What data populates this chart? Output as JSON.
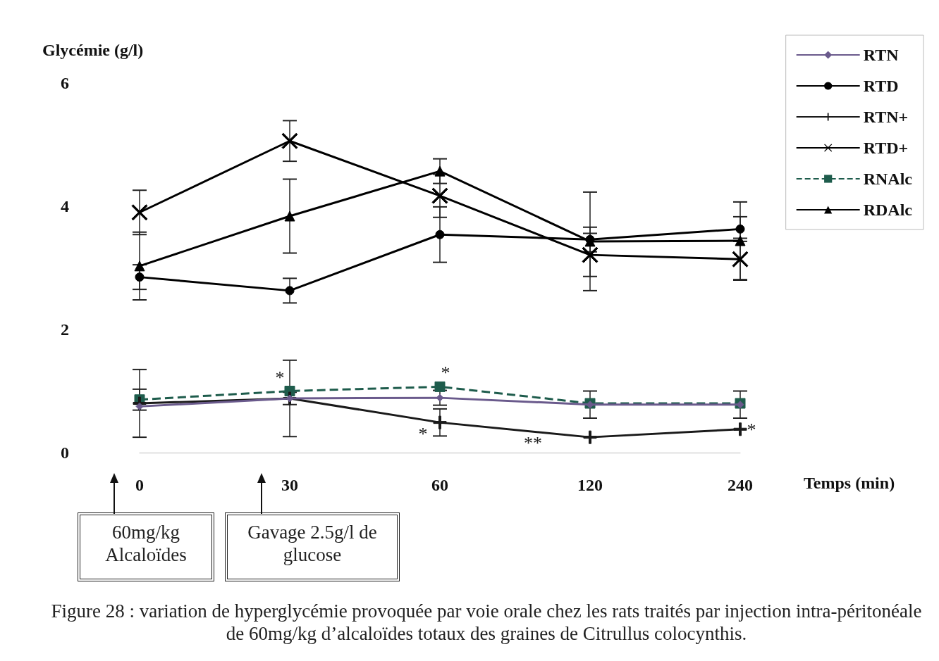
{
  "chart_data": {
    "type": "line",
    "ylabel": "Glycémie (g/l)",
    "xlabel": "Temps (min)",
    "categories": [
      "0",
      "30",
      "60",
      "120",
      "240"
    ],
    "ylim": [
      0,
      6
    ],
    "yticks": [
      0,
      2,
      4,
      6
    ],
    "grid": false,
    "legend": "top right",
    "series": [
      {
        "name": "RTN",
        "color": "#6a5a8c",
        "marker": "diamond",
        "line_style": "solid",
        "values": [
          0.75,
          0.88,
          0.89,
          0.78,
          0.78
        ],
        "errors": [
          null,
          0.1,
          0.12,
          0.22,
          0.22
        ]
      },
      {
        "name": "RTD",
        "color": "#000000",
        "marker": "circle",
        "line_style": "solid",
        "values": [
          2.85,
          2.63,
          3.54,
          3.46,
          3.63
        ],
        "errors": [
          0.2,
          0.2,
          0.45,
          0.2,
          0.2
        ]
      },
      {
        "name": "RTN+",
        "color": "#1a1a1a",
        "marker": "cross",
        "line_style": "solid",
        "values": [
          0.8,
          0.88,
          0.49,
          0.25,
          0.38
        ],
        "errors": [
          0.55,
          0.62,
          0.22,
          null,
          null
        ]
      },
      {
        "name": "RTD+",
        "color": "#000000",
        "marker": "x",
        "line_style": "solid",
        "values": [
          3.9,
          5.06,
          4.17,
          3.21,
          3.14
        ],
        "errors": [
          0.36,
          0.33,
          0.35,
          0.35,
          0.34
        ]
      },
      {
        "name": "RNAlc",
        "color": "#1e5c4c",
        "marker": "square",
        "line_style": "dashed",
        "values": [
          0.86,
          1.0,
          1.07,
          0.8,
          0.8
        ],
        "errors": [
          0.17,
          null,
          null,
          null,
          null
        ]
      },
      {
        "name": "RDAlc",
        "color": "#000000",
        "marker": "triangle",
        "line_style": "solid",
        "values": [
          3.03,
          3.84,
          4.57,
          3.43,
          3.44
        ],
        "errors": [
          0.55,
          0.6,
          0.2,
          0.8,
          0.63
        ]
      }
    ],
    "annotations": [
      {
        "text": "*",
        "x": "30",
        "y": 1.0
      },
      {
        "text": "*",
        "x": "60",
        "y": 1.07
      },
      {
        "text": "*",
        "x": "60",
        "y": 0.49
      },
      "**",
      {
        "text": "*",
        "x": "240",
        "y": 0.38
      },
      "60mg/kg Alcaloïdes",
      "Gavage 2.5g/l de glucose",
      "Figure 28 : variation de hyperglycémie provoquée par voie orale chez les rats traités par injection intra-péritonéale de 60mg/kg d’alcaloïdes totaux des graines de Citrullus colocynthis."
    ]
  }
}
